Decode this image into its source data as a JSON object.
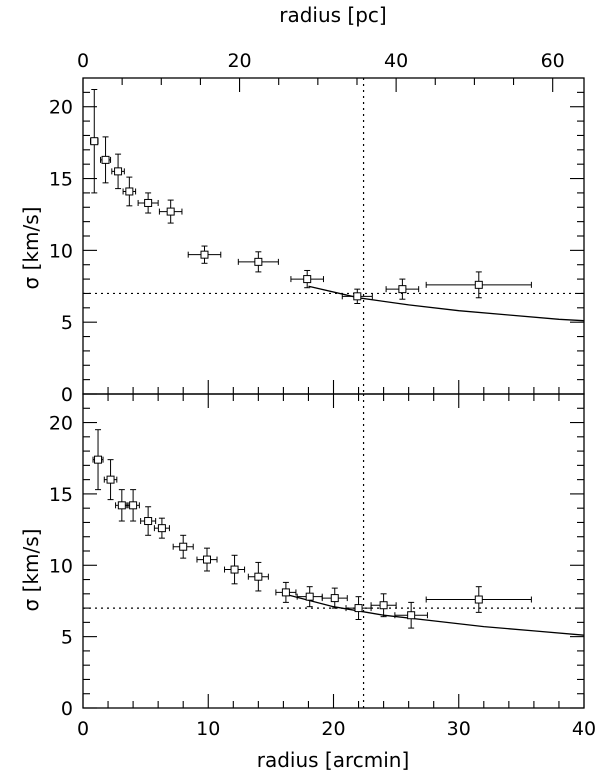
{
  "chart_data": [
    {
      "panel": "top",
      "type": "scatter",
      "xlabel": "radius [arcmin]",
      "x2label": "radius [pc]",
      "ylabel": "σ [km/s]",
      "xlim": [
        0,
        40
      ],
      "x2lim": [
        0,
        64
      ],
      "ylim": [
        0,
        22
      ],
      "xticks": [
        0,
        10,
        20,
        30,
        40
      ],
      "x2ticks": [
        0,
        20,
        40,
        60
      ],
      "yticks": [
        0,
        5,
        10,
        15,
        20
      ],
      "hline_y": 7,
      "vline_x": 22.4,
      "points": [
        {
          "x": 0.9,
          "xerr": 0.3,
          "y": 17.6,
          "yerr": 3.6
        },
        {
          "x": 1.8,
          "xerr": 0.4,
          "y": 16.3,
          "yerr": 1.6
        },
        {
          "x": 2.8,
          "xerr": 0.5,
          "y": 15.5,
          "yerr": 1.2
        },
        {
          "x": 3.7,
          "xerr": 0.5,
          "y": 14.1,
          "yerr": 1.0
        },
        {
          "x": 5.2,
          "xerr": 0.8,
          "y": 13.3,
          "yerr": 0.7
        },
        {
          "x": 7.0,
          "xerr": 0.9,
          "y": 12.7,
          "yerr": 0.8
        },
        {
          "x": 9.7,
          "xerr": 1.3,
          "y": 9.7,
          "yerr": 0.6
        },
        {
          "x": 14.0,
          "xerr": 1.6,
          "y": 9.2,
          "yerr": 0.7
        },
        {
          "x": 17.9,
          "xerr": 1.3,
          "y": 8.0,
          "yerr": 0.6
        },
        {
          "x": 21.9,
          "xerr": 1.2,
          "y": 6.8,
          "yerr": 0.5
        },
        {
          "x": 25.5,
          "xerr": 1.3,
          "y": 7.3,
          "yerr": 0.7
        },
        {
          "x": 31.6,
          "xerr": 4.2,
          "y": 7.6,
          "yerr": 0.9
        }
      ],
      "model": {
        "x": [
          18.0,
          22.0,
          26.0,
          30.0,
          34.0,
          38.0,
          40.0
        ],
        "y": [
          7.5,
          6.7,
          6.2,
          5.8,
          5.5,
          5.2,
          5.1
        ]
      }
    },
    {
      "panel": "bottom",
      "type": "scatter",
      "xlabel": "radius [arcmin]",
      "ylabel": "σ [km/s]",
      "xlim": [
        0,
        40
      ],
      "ylim": [
        0,
        22
      ],
      "xticks": [
        0,
        10,
        20,
        30,
        40
      ],
      "yticks": [
        0,
        5,
        10,
        15,
        20
      ],
      "hline_y": 7,
      "vline_x": 22.4,
      "points": [
        {
          "x": 1.2,
          "xerr": 0.4,
          "y": 17.4,
          "yerr": 2.1
        },
        {
          "x": 2.2,
          "xerr": 0.5,
          "y": 16.0,
          "yerr": 1.4
        },
        {
          "x": 3.1,
          "xerr": 0.5,
          "y": 14.2,
          "yerr": 1.1
        },
        {
          "x": 4.0,
          "xerr": 0.5,
          "y": 14.2,
          "yerr": 1.1
        },
        {
          "x": 5.2,
          "xerr": 0.6,
          "y": 13.1,
          "yerr": 1.0
        },
        {
          "x": 6.3,
          "xerr": 0.6,
          "y": 12.6,
          "yerr": 0.7
        },
        {
          "x": 8.0,
          "xerr": 0.8,
          "y": 11.3,
          "yerr": 0.8
        },
        {
          "x": 9.9,
          "xerr": 0.8,
          "y": 10.4,
          "yerr": 0.8
        },
        {
          "x": 12.1,
          "xerr": 0.8,
          "y": 9.7,
          "yerr": 1.0
        },
        {
          "x": 14.0,
          "xerr": 0.8,
          "y": 9.2,
          "yerr": 1.0
        },
        {
          "x": 16.2,
          "xerr": 0.8,
          "y": 8.1,
          "yerr": 0.7
        },
        {
          "x": 18.1,
          "xerr": 1.0,
          "y": 7.8,
          "yerr": 0.7
        },
        {
          "x": 20.1,
          "xerr": 1.0,
          "y": 7.7,
          "yerr": 0.7
        },
        {
          "x": 22.0,
          "xerr": 1.0,
          "y": 7.0,
          "yerr": 0.8
        },
        {
          "x": 24.0,
          "xerr": 1.0,
          "y": 7.2,
          "yerr": 0.8
        },
        {
          "x": 26.2,
          "xerr": 1.3,
          "y": 6.5,
          "yerr": 0.9
        },
        {
          "x": 31.6,
          "xerr": 4.2,
          "y": 7.6,
          "yerr": 0.9
        }
      ],
      "model": {
        "x": [
          16.0,
          20.0,
          24.0,
          28.0,
          32.0,
          36.0,
          40.0
        ],
        "y": [
          8.0,
          7.1,
          6.5,
          6.1,
          5.7,
          5.4,
          5.1
        ]
      }
    }
  ]
}
